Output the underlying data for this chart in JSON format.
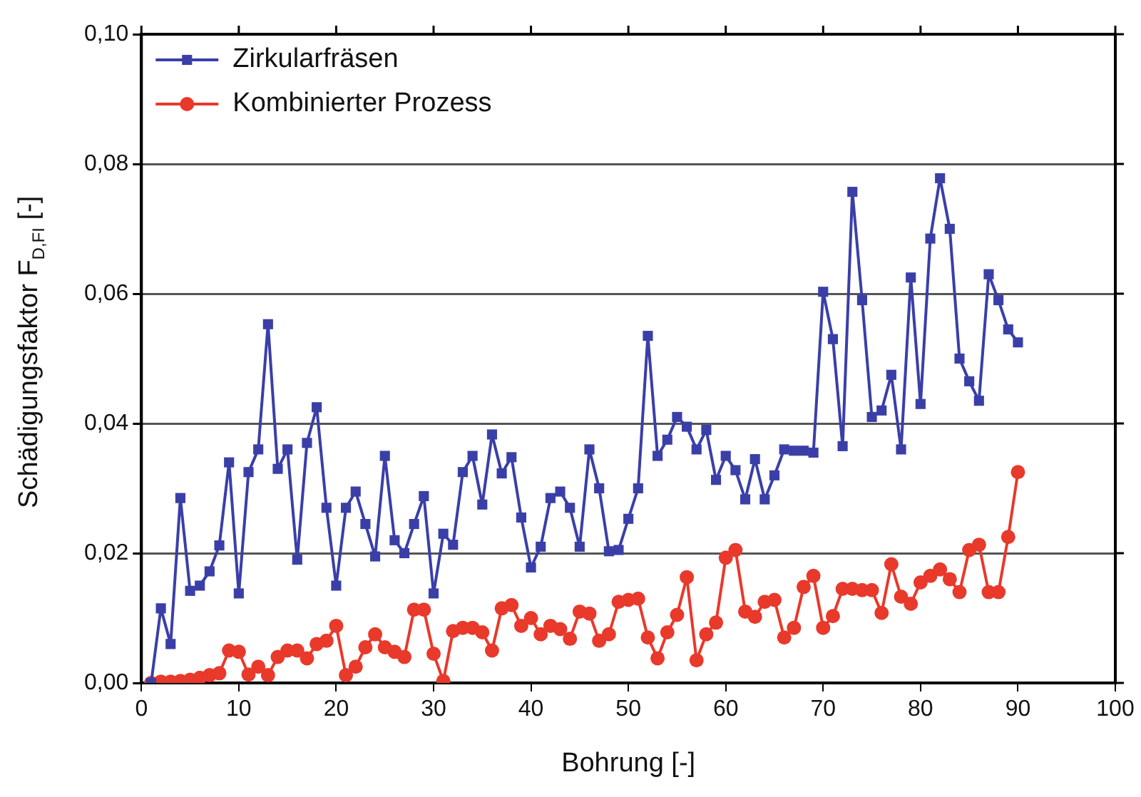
{
  "chart_data": {
    "type": "line",
    "xlabel": "Bohrung [-]",
    "ylabel": "Schädigungsfaktor F$_{D,FI}$ [-]",
    "x": [
      1,
      2,
      3,
      4,
      5,
      6,
      7,
      8,
      9,
      10,
      11,
      12,
      13,
      14,
      15,
      16,
      17,
      18,
      19,
      20,
      21,
      22,
      23,
      24,
      25,
      26,
      27,
      28,
      29,
      30,
      31,
      32,
      33,
      34,
      35,
      36,
      37,
      38,
      39,
      40,
      41,
      42,
      43,
      44,
      45,
      46,
      47,
      48,
      49,
      50,
      51,
      52,
      53,
      54,
      55,
      56,
      57,
      58,
      59,
      60,
      61,
      62,
      63,
      64,
      65,
      66,
      67,
      68,
      69,
      70,
      71,
      72,
      73,
      74,
      75,
      76,
      77,
      78,
      79,
      80,
      81,
      82,
      83,
      84,
      85,
      86,
      87,
      88,
      89,
      90
    ],
    "series": [
      {
        "name": "Zirkularfräsen",
        "color": "#3a3fa8",
        "marker": "square",
        "values": [
          0,
          0.0115,
          0.006,
          0.0285,
          0.0142,
          0.015,
          0.0172,
          0.0212,
          0.034,
          0.0138,
          0.0325,
          0.036,
          0.0553,
          0.033,
          0.036,
          0.019,
          0.037,
          0.0425,
          0.027,
          0.015,
          0.027,
          0.0295,
          0.0245,
          0.0195,
          0.035,
          0.022,
          0.02,
          0.0245,
          0.0288,
          0.0138,
          0.023,
          0.0213,
          0.0325,
          0.035,
          0.0275,
          0.0383,
          0.0323,
          0.0348,
          0.0255,
          0.0178,
          0.021,
          0.0285,
          0.0295,
          0.027,
          0.021,
          0.036,
          0.03,
          0.0203,
          0.0205,
          0.0253,
          0.03,
          0.0535,
          0.035,
          0.0375,
          0.041,
          0.0395,
          0.036,
          0.039,
          0.0313,
          0.035,
          0.0328,
          0.0283,
          0.0345,
          0.0283,
          0.032,
          0.036,
          0.0358,
          0.0358,
          0.0355,
          0.0603,
          0.053,
          0.0365,
          0.0757,
          0.059,
          0.041,
          0.042,
          0.0475,
          0.036,
          0.0625,
          0.043,
          0.0685,
          0.0778,
          0.07,
          0.05,
          0.0465,
          0.0435,
          0.063,
          0.059,
          0.0545,
          0.0525
        ]
      },
      {
        "name": "Kombinierter Prozess",
        "color": "#e8392b",
        "marker": "circle",
        "values": [
          0,
          0.0002,
          0.0002,
          0.0003,
          0.0005,
          0.0008,
          0.0012,
          0.0015,
          0.005,
          0.0048,
          0.0013,
          0.0025,
          0.0012,
          0.004,
          0.005,
          0.005,
          0.0038,
          0.006,
          0.0065,
          0.0088,
          0.0012,
          0.0025,
          0.0055,
          0.0075,
          0.0055,
          0.0048,
          0.004,
          0.0113,
          0.0113,
          0.0045,
          0.0003,
          0.008,
          0.0085,
          0.0085,
          0.0078,
          0.005,
          0.0115,
          0.012,
          0.0088,
          0.01,
          0.0075,
          0.0088,
          0.0083,
          0.0068,
          0.011,
          0.0107,
          0.0065,
          0.0075,
          0.0125,
          0.0128,
          0.013,
          0.007,
          0.0038,
          0.0078,
          0.0105,
          0.0163,
          0.0035,
          0.0075,
          0.0093,
          0.0193,
          0.0205,
          0.011,
          0.0102,
          0.0125,
          0.0128,
          0.007,
          0.0085,
          0.0148,
          0.0165,
          0.0085,
          0.0103,
          0.0145,
          0.0145,
          0.0143,
          0.0143,
          0.0108,
          0.0183,
          0.0133,
          0.0122,
          0.0155,
          0.0165,
          0.0175,
          0.016,
          0.014,
          0.0205,
          0.0213,
          0.014,
          0.014,
          0.0225,
          0.0325
        ]
      }
    ],
    "xlim": [
      0,
      100
    ],
    "xticks": [
      0,
      10,
      20,
      30,
      40,
      50,
      60,
      70,
      80,
      90,
      100
    ],
    "ylim": [
      0,
      0.1
    ],
    "yticks": [
      {
        "value": 0,
        "label": "0,00"
      },
      {
        "value": 0.02,
        "label": "0,02"
      },
      {
        "value": 0.04,
        "label": "0,04"
      },
      {
        "value": 0.06,
        "label": "0,06"
      },
      {
        "value": 0.08,
        "label": "0,08"
      },
      {
        "value": 0.1,
        "label": "0,10"
      }
    ],
    "grid": "y",
    "legend": "top left",
    "line_style": "solid"
  }
}
